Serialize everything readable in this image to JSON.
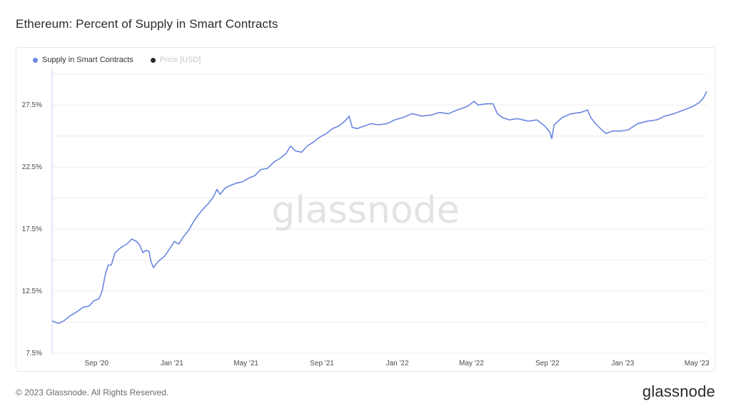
{
  "title": "Ethereum: Percent of Supply in Smart Contracts",
  "legend": [
    {
      "label": "Supply in Smart Contracts",
      "color": "#6b86e0",
      "text_color": "#333333"
    },
    {
      "label": "Price [USD]",
      "color": "#2b2b2b",
      "text_color": "#c8c8c8"
    }
  ],
  "watermark": "glassnode",
  "footer": {
    "copyright": "© 2023 Glassnode. All Rights Reserved.",
    "logo": "glassnode"
  },
  "colors": {
    "series": "#6b86e0",
    "grid": "#ececec",
    "watermark": "#e3e3e3"
  },
  "chart_data": {
    "type": "line",
    "title": "Ethereum: Percent of Supply in Smart Contracts",
    "ylabel": "",
    "xlabel": "",
    "y_ticks": [
      {
        "value": 7.5,
        "label": "7.5%"
      },
      {
        "value": 12.5,
        "label": "12.5%"
      },
      {
        "value": 17.5,
        "label": "17.5%"
      },
      {
        "value": 22.5,
        "label": "22.5%"
      },
      {
        "value": 27.5,
        "label": "27.5%"
      }
    ],
    "ylim": [
      7.5,
      30.5
    ],
    "x_range": [
      "2020-06-21",
      "2023-05-17"
    ],
    "x_ticks": [
      {
        "date": "2020-09-01",
        "label": "Sep '20"
      },
      {
        "date": "2021-01-01",
        "label": "Jan '21"
      },
      {
        "date": "2021-05-01",
        "label": "May '21"
      },
      {
        "date": "2021-09-01",
        "label": "Sep '21"
      },
      {
        "date": "2022-01-01",
        "label": "Jan '22"
      },
      {
        "date": "2022-05-01",
        "label": "May '22"
      },
      {
        "date": "2022-09-01",
        "label": "Sep '22"
      },
      {
        "date": "2023-01-01",
        "label": "Jan '23"
      },
      {
        "date": "2023-05-01",
        "label": "May '23"
      }
    ],
    "grid": true,
    "legend_position": "top-left",
    "series": [
      {
        "name": "Supply in Smart Contracts",
        "color": "#6b86e0",
        "points": [
          [
            "2020-06-21",
            10.1
          ],
          [
            "2020-07-01",
            9.9
          ],
          [
            "2020-07-10",
            10.1
          ],
          [
            "2020-07-20",
            10.5
          ],
          [
            "2020-07-30",
            10.8
          ],
          [
            "2020-08-10",
            11.2
          ],
          [
            "2020-08-20",
            11.3
          ],
          [
            "2020-08-27",
            11.7
          ],
          [
            "2020-09-05",
            11.9
          ],
          [
            "2020-09-10",
            12.5
          ],
          [
            "2020-09-15",
            13.8
          ],
          [
            "2020-09-20",
            14.6
          ],
          [
            "2020-09-25",
            14.6
          ],
          [
            "2020-10-01",
            15.6
          ],
          [
            "2020-10-10",
            16.0
          ],
          [
            "2020-10-20",
            16.3
          ],
          [
            "2020-10-28",
            16.7
          ],
          [
            "2020-11-05",
            16.5
          ],
          [
            "2020-11-10",
            16.2
          ],
          [
            "2020-11-15",
            15.6
          ],
          [
            "2020-11-20",
            15.8
          ],
          [
            "2020-11-25",
            15.7
          ],
          [
            "2020-11-28",
            14.9
          ],
          [
            "2020-12-02",
            14.4
          ],
          [
            "2020-12-10",
            14.9
          ],
          [
            "2020-12-20",
            15.3
          ],
          [
            "2020-12-28",
            15.9
          ],
          [
            "2021-01-05",
            16.5
          ],
          [
            "2021-01-12",
            16.3
          ],
          [
            "2021-01-20",
            16.9
          ],
          [
            "2021-01-28",
            17.4
          ],
          [
            "2021-02-05",
            18.1
          ],
          [
            "2021-02-12",
            18.6
          ],
          [
            "2021-02-20",
            19.1
          ],
          [
            "2021-02-28",
            19.5
          ],
          [
            "2021-03-08",
            20.0
          ],
          [
            "2021-03-15",
            20.7
          ],
          [
            "2021-03-20",
            20.3
          ],
          [
            "2021-03-28",
            20.8
          ],
          [
            "2021-04-05",
            21.0
          ],
          [
            "2021-04-15",
            21.2
          ],
          [
            "2021-04-25",
            21.3
          ],
          [
            "2021-05-05",
            21.6
          ],
          [
            "2021-05-15",
            21.8
          ],
          [
            "2021-05-25",
            22.3
          ],
          [
            "2021-06-05",
            22.4
          ],
          [
            "2021-06-15",
            22.9
          ],
          [
            "2021-06-25",
            23.2
          ],
          [
            "2021-07-05",
            23.6
          ],
          [
            "2021-07-12",
            24.2
          ],
          [
            "2021-07-20",
            23.8
          ],
          [
            "2021-07-30",
            23.7
          ],
          [
            "2021-08-08",
            24.2
          ],
          [
            "2021-08-18",
            24.5
          ],
          [
            "2021-08-28",
            24.9
          ],
          [
            "2021-09-08",
            25.2
          ],
          [
            "2021-09-18",
            25.6
          ],
          [
            "2021-09-28",
            25.8
          ],
          [
            "2021-10-08",
            26.2
          ],
          [
            "2021-10-15",
            26.6
          ],
          [
            "2021-10-20",
            25.7
          ],
          [
            "2021-10-28",
            25.6
          ],
          [
            "2021-11-08",
            25.8
          ],
          [
            "2021-11-20",
            26.0
          ],
          [
            "2021-12-01",
            25.9
          ],
          [
            "2021-12-15",
            26.0
          ],
          [
            "2021-12-28",
            26.3
          ],
          [
            "2022-01-10",
            26.5
          ],
          [
            "2022-01-25",
            26.8
          ],
          [
            "2022-02-10",
            26.6
          ],
          [
            "2022-02-25",
            26.7
          ],
          [
            "2022-03-10",
            26.9
          ],
          [
            "2022-03-25",
            26.8
          ],
          [
            "2022-04-08",
            27.1
          ],
          [
            "2022-04-25",
            27.4
          ],
          [
            "2022-05-05",
            27.8
          ],
          [
            "2022-05-12",
            27.5
          ],
          [
            "2022-05-25",
            27.6
          ],
          [
            "2022-06-05",
            27.6
          ],
          [
            "2022-06-12",
            26.8
          ],
          [
            "2022-06-20",
            26.5
          ],
          [
            "2022-07-01",
            26.3
          ],
          [
            "2022-07-15",
            26.4
          ],
          [
            "2022-08-01",
            26.2
          ],
          [
            "2022-08-15",
            26.3
          ],
          [
            "2022-08-28",
            25.8
          ],
          [
            "2022-09-05",
            25.3
          ],
          [
            "2022-09-08",
            24.8
          ],
          [
            "2022-09-12",
            25.9
          ],
          [
            "2022-09-25",
            26.5
          ],
          [
            "2022-10-10",
            26.8
          ],
          [
            "2022-10-25",
            26.9
          ],
          [
            "2022-11-05",
            27.1
          ],
          [
            "2022-11-10",
            26.5
          ],
          [
            "2022-11-18",
            26.0
          ],
          [
            "2022-11-28",
            25.5
          ],
          [
            "2022-12-05",
            25.2
          ],
          [
            "2022-12-15",
            25.4
          ],
          [
            "2022-12-28",
            25.4
          ],
          [
            "2023-01-10",
            25.5
          ],
          [
            "2023-01-25",
            26.0
          ],
          [
            "2023-02-10",
            26.2
          ],
          [
            "2023-02-25",
            26.3
          ],
          [
            "2023-03-10",
            26.6
          ],
          [
            "2023-03-25",
            26.8
          ],
          [
            "2023-04-10",
            27.1
          ],
          [
            "2023-04-25",
            27.4
          ],
          [
            "2023-05-05",
            27.7
          ],
          [
            "2023-05-12",
            28.1
          ],
          [
            "2023-05-17",
            28.6
          ]
        ]
      }
    ]
  }
}
